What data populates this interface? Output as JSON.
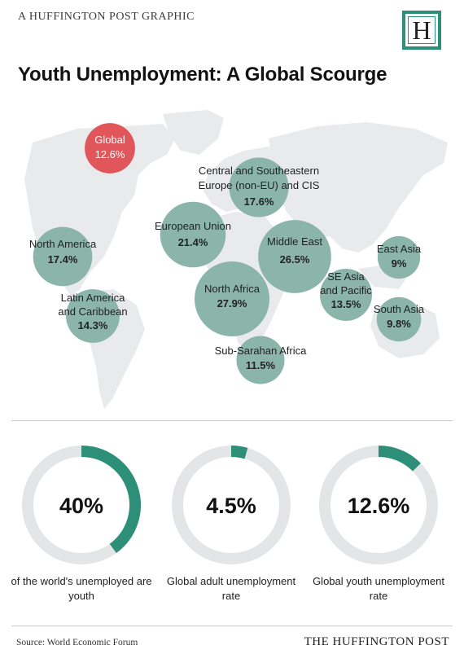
{
  "header": {
    "tagline": "A HUFFINGTON POST GRAPHIC",
    "logo_letter": "H",
    "title": "Youth Unemployment: A Global Scourge"
  },
  "colors": {
    "bubble": "#8ab5a8",
    "global_bubble": "#e0565b",
    "accent": "#2e8f78",
    "track": "#e4e5e6",
    "land": "#e9eaeb"
  },
  "chart_data": [
    {
      "type": "bubble-map",
      "unit": "%",
      "regions": [
        {
          "label": "Global",
          "value": 12.6,
          "value_label": "12.6%",
          "highlight": true
        },
        {
          "label": "Central and Southeastern Europe (non-EU) and CIS",
          "value": 17.6,
          "value_label": "17.6%"
        },
        {
          "label": "European Union",
          "value": 21.4,
          "value_label": "21.4%"
        },
        {
          "label": "North America",
          "value": 17.4,
          "value_label": "17.4%"
        },
        {
          "label": "Middle East",
          "value": 26.5,
          "value_label": "26.5%"
        },
        {
          "label": "East Asia",
          "value": 9,
          "value_label": "9%"
        },
        {
          "label": "Latin America and Caribbean",
          "value": 14.3,
          "value_label": "14.3%"
        },
        {
          "label": "North Africa",
          "value": 27.9,
          "value_label": "27.9%"
        },
        {
          "label": "SE Asia and Pacific",
          "value": 13.5,
          "value_label": "13.5%"
        },
        {
          "label": "South Asia",
          "value": 9.8,
          "value_label": "9.8%"
        },
        {
          "label": "Sub-Sarahan Africa",
          "value": 11.5,
          "value_label": "11.5%"
        }
      ]
    },
    {
      "type": "pie",
      "charts": [
        {
          "value": 40,
          "value_label": "40%",
          "caption": "of the world's unemployed are youth"
        },
        {
          "value": 4.5,
          "value_label": "4.5%",
          "caption": "Global adult unemployment rate"
        },
        {
          "value": 12.6,
          "value_label": "12.6%",
          "caption": "Global youth unemployment rate"
        }
      ]
    }
  ],
  "footer": {
    "source": "Source: World Economic Forum",
    "brand": "THE HUFFINGTON POST"
  }
}
